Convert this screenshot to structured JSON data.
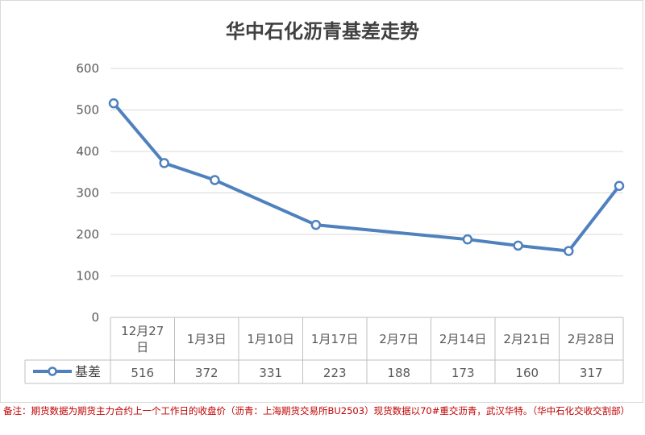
{
  "chart_data": {
    "type": "line",
    "title": "华中石化沥青基差走势",
    "categories": [
      "12月27日",
      "1月3日",
      "1月10日",
      "1月17日",
      "2月7日",
      "2月14日",
      "2月21日",
      "2月28日"
    ],
    "category_lines": [
      [
        "12月27",
        "日"
      ],
      [
        "1月3日"
      ],
      [
        "1月10日"
      ],
      [
        "1月17日"
      ],
      [
        "2月7日"
      ],
      [
        "2月14日"
      ],
      [
        "2月21日"
      ],
      [
        "2月28日"
      ]
    ],
    "series": [
      {
        "name": "基差",
        "values": [
          516,
          372,
          331,
          223,
          188,
          173,
          160,
          317
        ],
        "color": "#4f81bd"
      }
    ],
    "x_positions": [
      0,
      1,
      2,
      4,
      7,
      8,
      9,
      10
    ],
    "yticks": [
      "0",
      "100",
      "200",
      "300",
      "400",
      "500",
      "600"
    ],
    "ylim": [
      0,
      600
    ],
    "grid": true,
    "legend": "data-table",
    "data_table": true
  },
  "note": "备注：期货数据为期货主力合约上一个工作日的收盘价（沥青：上海期货交易所BU2503）现货数据以70#重交沥青，武汉华特。（华中石化交收交割部）"
}
